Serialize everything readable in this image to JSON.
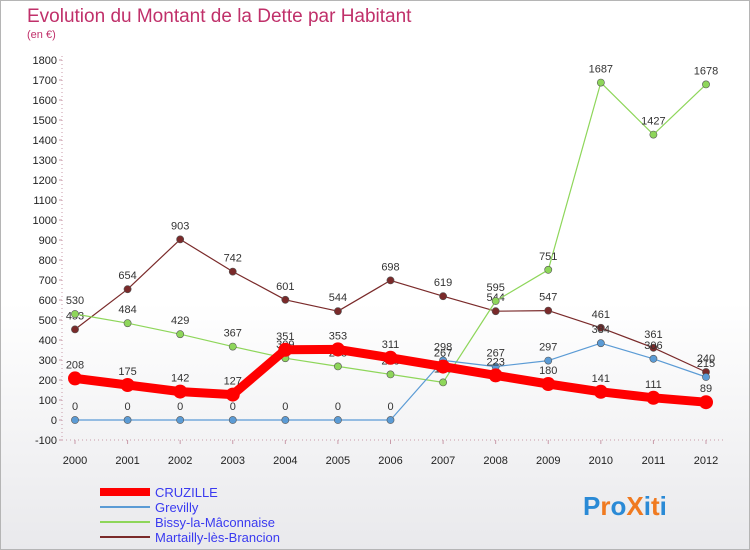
{
  "title": "Evolution du Montant de la Dette par Habitant",
  "subtitle": "(en €)",
  "logo": {
    "text": "ProXiti",
    "letters": [
      "P",
      "r",
      "o",
      "X",
      "i",
      "t",
      "i"
    ],
    "colors": [
      "#2a8ad6",
      "#f07a20",
      "#2a8ad6",
      "#f07a20",
      "#2a8ad6",
      "#f07a20",
      "#2a8ad6"
    ]
  },
  "chart_data": {
    "type": "line",
    "x": [
      "2000",
      "2001",
      "2002",
      "2003",
      "2004",
      "2005",
      "2006",
      "2007",
      "2008",
      "2009",
      "2010",
      "2011",
      "2012"
    ],
    "yticks": [
      "-100",
      "0",
      "100",
      "200",
      "300",
      "400",
      "500",
      "600",
      "700",
      "800",
      "900",
      "1000",
      "1100",
      "1200",
      "1300",
      "1400",
      "1500",
      "1600",
      "1700",
      "1800"
    ],
    "ylim": [
      -100,
      1800
    ],
    "grid": false,
    "legend_position": "bottom-left",
    "series": [
      {
        "name": "CRUZILLE",
        "color": "#ff0000",
        "values": [
          208,
          175,
          142,
          127,
          351,
          353,
          311,
          267,
          223,
          180,
          141,
          111,
          89
        ],
        "labels": [
          "208",
          "175",
          "142",
          "127",
          "351",
          "353",
          "311",
          "267",
          "223",
          "180",
          "141",
          "111",
          "89"
        ]
      },
      {
        "name": "Grevilly",
        "color": "#5b9bd5",
        "values": [
          0,
          0,
          0,
          0,
          0,
          0,
          0,
          298,
          267,
          297,
          384,
          306,
          215
        ],
        "labels": [
          "0",
          "0",
          "0",
          "0",
          "0",
          "0",
          "0",
          "298",
          "267",
          "297",
          "384",
          "306",
          "215"
        ]
      },
      {
        "name": "Bissy-la-Mâconnaise",
        "color": "#8ed65a",
        "values": [
          530,
          484,
          429,
          367,
          309,
          268,
          228,
          188,
          595,
          751,
          1687,
          1427,
          1678
        ],
        "labels": [
          "530",
          "484",
          "429",
          "367",
          "309",
          "268",
          "228",
          "188",
          "595",
          "751",
          "1687",
          "1427",
          "1678"
        ]
      },
      {
        "name": "Martailly-lès-Brancion",
        "color": "#7a2a2a",
        "values": [
          453,
          654,
          903,
          742,
          601,
          544,
          698,
          619,
          544,
          547,
          461,
          361,
          240
        ],
        "labels": [
          "453",
          "654",
          "903",
          "742",
          "601",
          "544",
          "698",
          "619",
          "544",
          "547",
          "461",
          "361",
          "240"
        ]
      }
    ]
  }
}
